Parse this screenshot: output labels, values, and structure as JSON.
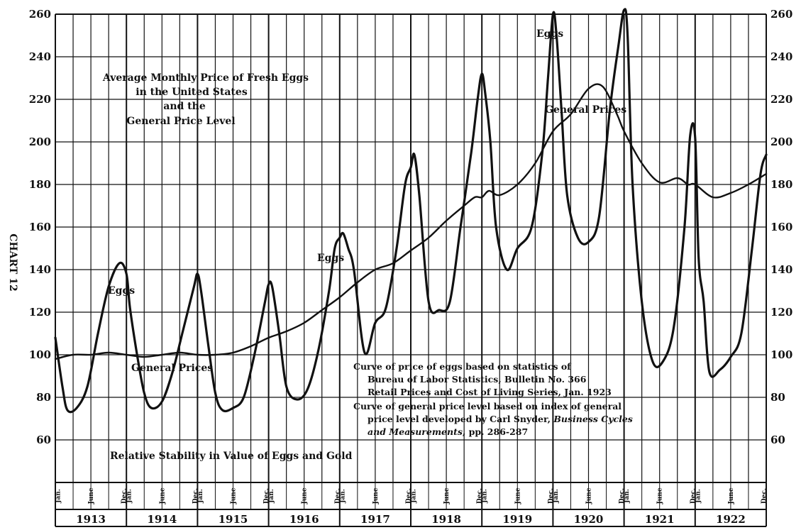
{
  "chart_data": {
    "type": "line",
    "title": "Average Monthly Price of Fresh Eggs",
    "title_lines": [
      "Average Monthly Price of Fresh Eggs",
      "in the United States",
      "and the",
      "General Price Level"
    ],
    "subtitle": "Relative Stability in Value of Eggs and Gold",
    "side_label": "CHART 12",
    "xlabel": "",
    "ylabel": "",
    "x_range": [
      1913.0,
      1923.0
    ],
    "ylim": [
      40,
      260
    ],
    "y_ticks": [
      60,
      80,
      100,
      120,
      140,
      160,
      180,
      200,
      220,
      240,
      260
    ],
    "y_tick_labels_right": [
      "60",
      "80",
      "100",
      "120",
      "140",
      "160",
      "180",
      "200",
      "220",
      "240",
      "260"
    ],
    "month_labels": [
      "Jan.",
      "June",
      "Dec."
    ],
    "years": [
      "1913",
      "1914",
      "1915",
      "1916",
      "1917",
      "1918",
      "1919",
      "1920",
      "1921",
      "1922"
    ],
    "grid": true,
    "series": [
      {
        "name": "Eggs",
        "x": [
          1913.0,
          1913.1,
          1913.17,
          1913.3,
          1913.45,
          1913.6,
          1913.75,
          1913.9,
          1914.0,
          1914.05,
          1914.15,
          1914.25,
          1914.35,
          1914.5,
          1914.65,
          1914.8,
          1914.95,
          1915.0,
          1915.05,
          1915.15,
          1915.25,
          1915.35,
          1915.5,
          1915.65,
          1915.8,
          1915.95,
          1916.0,
          1916.05,
          1916.15,
          1916.25,
          1916.4,
          1916.55,
          1916.7,
          1916.85,
          1916.93,
          1917.0,
          1917.05,
          1917.12,
          1917.2,
          1917.35,
          1917.5,
          1917.65,
          1917.8,
          1917.92,
          1918.0,
          1918.05,
          1918.12,
          1918.25,
          1918.4,
          1918.55,
          1918.7,
          1918.85,
          1918.94,
          1919.0,
          1919.05,
          1919.12,
          1919.2,
          1919.35,
          1919.5,
          1919.7,
          1919.85,
          1919.93,
          1920.0,
          1920.05,
          1920.12,
          1920.2,
          1920.35,
          1920.5,
          1920.65,
          1920.8,
          1920.92,
          1921.0,
          1921.05,
          1921.12,
          1921.25,
          1921.4,
          1921.55,
          1921.7,
          1921.85,
          1921.93,
          1922.0,
          1922.05,
          1922.12,
          1922.2,
          1922.35,
          1922.5,
          1922.65,
          1922.8,
          1922.92,
          1923.0
        ],
        "values": [
          108,
          85,
          74,
          75,
          85,
          110,
          132,
          143,
          138,
          122,
          100,
          82,
          75,
          78,
          92,
          112,
          132,
          138,
          130,
          105,
          82,
          74,
          75,
          80,
          100,
          125,
          133,
          132,
          110,
          85,
          79,
          84,
          102,
          130,
          150,
          155,
          157,
          150,
          140,
          101,
          115,
          122,
          150,
          180,
          188,
          194,
          175,
          125,
          121,
          125,
          160,
          195,
          220,
          232,
          222,
          200,
          160,
          140,
          150,
          160,
          195,
          230,
          260,
          250,
          215,
          175,
          155,
          153,
          165,
          215,
          245,
          262,
          250,
          180,
          125,
          97,
          97,
          113,
          160,
          203,
          202,
          145,
          125,
          92,
          93,
          99,
          110,
          150,
          185,
          194
        ]
      },
      {
        "name": "General Prices",
        "x": [
          1913.0,
          1913.25,
          1913.5,
          1913.75,
          1914.0,
          1914.25,
          1914.5,
          1914.75,
          1915.0,
          1915.25,
          1915.5,
          1915.75,
          1916.0,
          1916.25,
          1916.5,
          1916.75,
          1917.0,
          1917.25,
          1917.5,
          1917.75,
          1918.0,
          1918.25,
          1918.5,
          1918.75,
          1918.9,
          1919.0,
          1919.1,
          1919.25,
          1919.5,
          1919.75,
          1920.0,
          1920.25,
          1920.5,
          1920.7,
          1920.9,
          1921.0,
          1921.25,
          1921.5,
          1921.75,
          1921.9,
          1922.0,
          1922.25,
          1922.5,
          1922.75,
          1923.0
        ],
        "values": [
          98,
          100,
          100,
          101,
          100,
          99,
          100,
          101,
          100,
          100,
          101,
          104,
          108,
          111,
          115,
          121,
          127,
          134,
          140,
          143,
          149,
          155,
          163,
          170,
          174,
          174,
          177,
          175,
          180,
          190,
          205,
          213,
          225,
          226,
          213,
          205,
          190,
          181,
          183,
          180,
          180,
          174,
          176,
          180,
          185
        ]
      }
    ],
    "annotations": {
      "eggs_labels": [
        "Eggs",
        "Eggs",
        "Eggs"
      ],
      "general_labels": [
        "General Prices",
        "General Prices"
      ],
      "note_lines": [
        "Curve of price of eggs based on statistics of",
        "Bureau of Labor Statistics, Bulletin No. 366",
        "Retail Prices and Cost of Living Series, Jan. 1923",
        "Curve of general price level based on index of general",
        "price level developed by Carl Snyder, ",
        "Business Cycles",
        "and Measurements",
        ", pp. 286-287"
      ]
    }
  }
}
